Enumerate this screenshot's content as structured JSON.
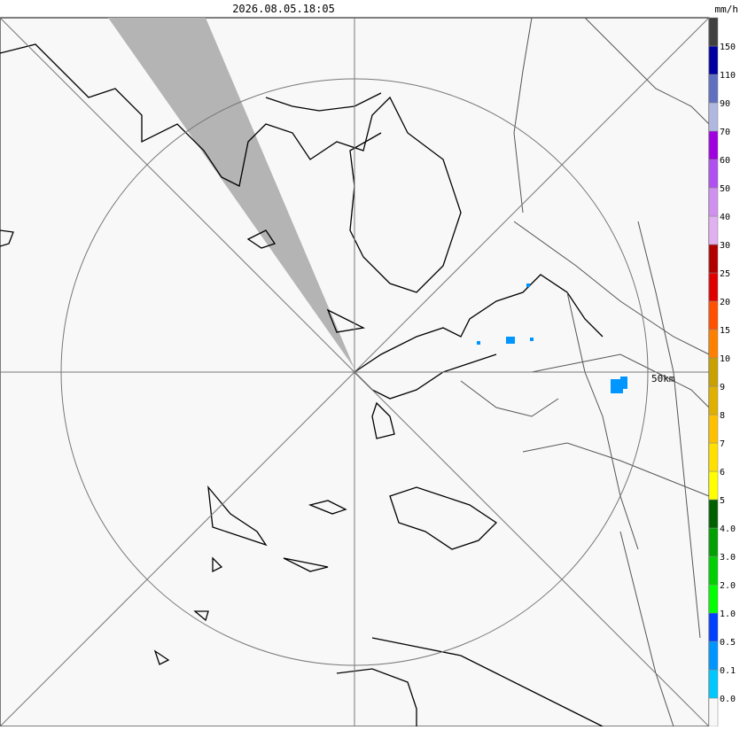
{
  "header": {
    "timestamp": "2026.08.05.18:05",
    "unit": "mm/h"
  },
  "map": {
    "range_label": "50km"
  },
  "legend": {
    "colors": [
      "#f8f8f8",
      "#00c8ff",
      "#0096ff",
      "#0040ff",
      "#00ff00",
      "#00d000",
      "#00a000",
      "#006000",
      "#ffff00",
      "#ffe000",
      "#ffc000",
      "#e0b000",
      "#c8a000",
      "#ff8000",
      "#ff5000",
      "#e00000",
      "#b00000",
      "#e0b0f0",
      "#d090f0",
      "#b050f0",
      "#a000e0",
      "#b0b8e0",
      "#6070c0",
      "#0000a0",
      "#404040"
    ],
    "labels": [
      "0.0",
      "0.1",
      "0.5",
      "1.0",
      "2.0",
      "3.0",
      "4.0",
      "5",
      "6",
      "7",
      "8",
      "9",
      "10",
      "15",
      "20",
      "25",
      "30",
      "40",
      "50",
      "60",
      "70",
      "90",
      "110",
      "150"
    ]
  }
}
